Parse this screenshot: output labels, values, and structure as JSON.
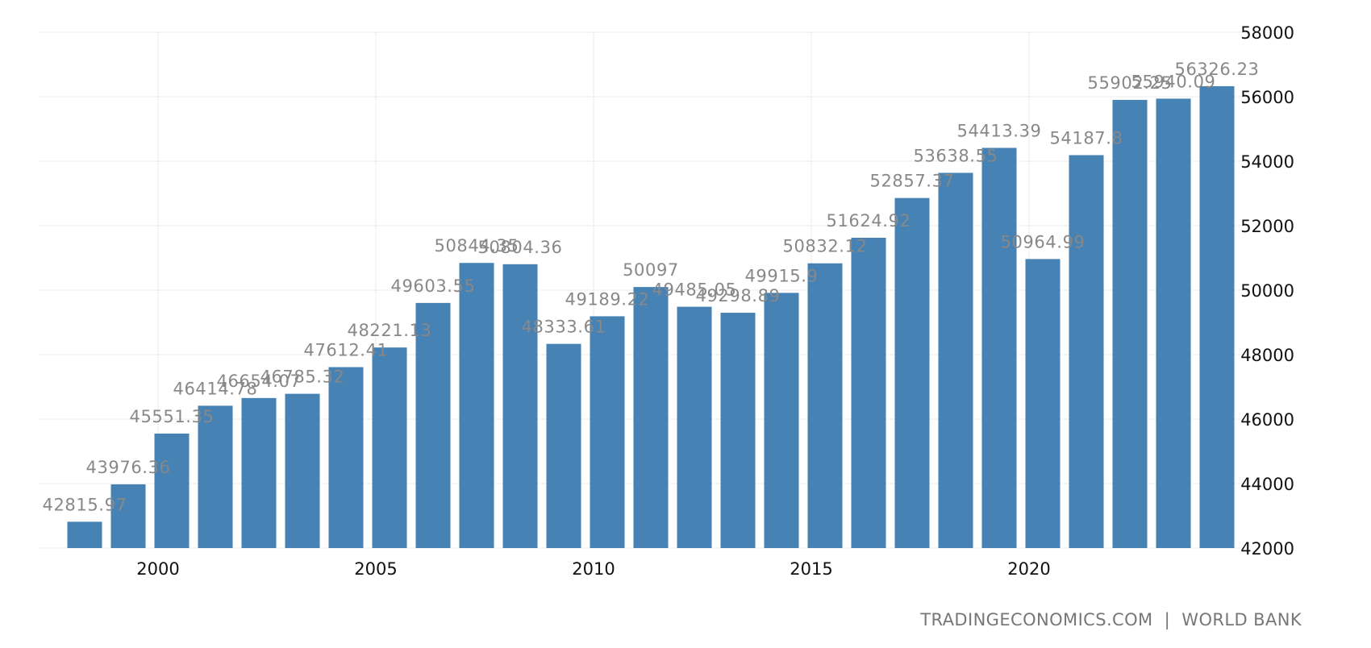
{
  "chart_data": {
    "type": "bar",
    "categories": [
      "1998",
      "1999",
      "2000",
      "2001",
      "2002",
      "2003",
      "2004",
      "2005",
      "2006",
      "2007",
      "2008",
      "2009",
      "2010",
      "2011",
      "2012",
      "2013",
      "2014",
      "2015",
      "2016",
      "2017",
      "2018",
      "2019",
      "2020",
      "2021",
      "2022",
      "2023",
      "2024"
    ],
    "values": [
      42815.97,
      43976.36,
      45551.35,
      46414.78,
      46654.07,
      46785.32,
      47612.41,
      48221.13,
      49603.55,
      50844.35,
      50804.36,
      48333.61,
      49189.22,
      50097,
      49485.05,
      49298.89,
      49915.9,
      50832.12,
      51624.92,
      52857.37,
      53638.55,
      54413.39,
      50964.99,
      54187.8,
      55902.25,
      55940.09,
      56326.23
    ],
    "data_labels": [
      "42815.97",
      "43976.36",
      "45551.35",
      "46414.78",
      "46654.07",
      "46785.32",
      "47612.41",
      "48221.13",
      "49603.55",
      "50844.35",
      "50804.36",
      "48333.61",
      "49189.22",
      "50097",
      "49485.05",
      "49298.89",
      "49915.9",
      "50832.12",
      "51624.92",
      "52857.37",
      "53638.55",
      "54413.39",
      "50964.99",
      "54187.8",
      "55902.25",
      "55940.09",
      "56326.23"
    ],
    "x_ticks": [
      "2000",
      "2005",
      "2010",
      "2015",
      "2020"
    ],
    "y_ticks": [
      "42000",
      "44000",
      "46000",
      "48000",
      "50000",
      "52000",
      "54000",
      "56000",
      "58000"
    ],
    "ylim": [
      42000,
      58000
    ],
    "y_axis_side": "right",
    "grid": true,
    "bar_color": "#4682b4"
  },
  "source_credit": "TRADINGECONOMICS.COM  |  WORLD BANK"
}
